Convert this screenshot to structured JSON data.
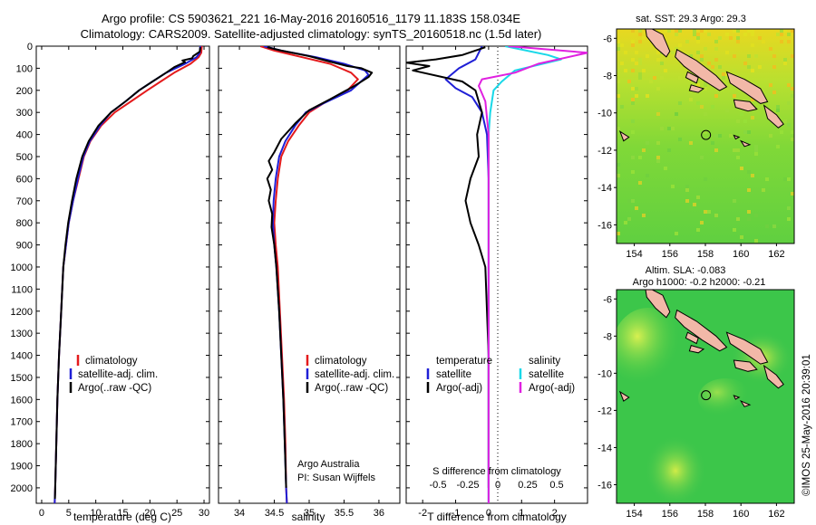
{
  "chart_data": [
    {
      "type": "line",
      "panel": "temperature",
      "xlabel": "temperature (deg C)",
      "ylabel": "",
      "xlim": [
        -1,
        31
      ],
      "ylim": [
        2070,
        0
      ],
      "xticks": [
        0,
        5,
        10,
        15,
        20,
        25,
        30
      ],
      "yticks": [
        0,
        100,
        200,
        300,
        400,
        500,
        600,
        700,
        800,
        900,
        1000,
        1100,
        1200,
        1300,
        1400,
        1500,
        1600,
        1700,
        1800,
        1900,
        2000
      ],
      "legend": [
        "climatology",
        "satellite-adj. clim.",
        "Argo(..raw -QC)"
      ],
      "series": [
        {
          "name": "climatology",
          "color": "#e41a1c",
          "points": [
            [
              29.6,
              0
            ],
            [
              29.5,
              30
            ],
            [
              29.0,
              50
            ],
            [
              27.5,
              80
            ],
            [
              24.5,
              120
            ],
            [
              22.0,
              160
            ],
            [
              19.5,
              200
            ],
            [
              16.5,
              250
            ],
            [
              13.5,
              300
            ],
            [
              11.0,
              360
            ],
            [
              9.0,
              430
            ],
            [
              7.8,
              500
            ],
            [
              6.8,
              600
            ],
            [
              5.8,
              700
            ],
            [
              5.0,
              800
            ],
            [
              4.5,
              900
            ],
            [
              4.0,
              1000
            ],
            [
              3.6,
              1200
            ],
            [
              3.2,
              1400
            ],
            [
              2.9,
              1600
            ],
            [
              2.7,
              1800
            ],
            [
              2.5,
              2000
            ],
            [
              2.4,
              2070
            ]
          ]
        },
        {
          "name": "satellite-adj. clim.",
          "color": "#1f1fd6",
          "points": [
            [
              29.3,
              0
            ],
            [
              29.2,
              30
            ],
            [
              28.6,
              50
            ],
            [
              26.5,
              80
            ],
            [
              23.0,
              120
            ],
            [
              20.5,
              160
            ],
            [
              18.0,
              200
            ],
            [
              15.5,
              250
            ],
            [
              12.8,
              300
            ],
            [
              10.8,
              360
            ],
            [
              8.9,
              430
            ],
            [
              7.7,
              500
            ],
            [
              6.7,
              600
            ],
            [
              5.8,
              700
            ],
            [
              5.0,
              800
            ],
            [
              4.5,
              900
            ],
            [
              4.0,
              1000
            ],
            [
              3.6,
              1200
            ],
            [
              3.2,
              1400
            ],
            [
              2.9,
              1600
            ],
            [
              2.7,
              1800
            ],
            [
              2.5,
              2000
            ],
            [
              2.4,
              2070
            ]
          ]
        },
        {
          "name": "Argo(..raw -QC)",
          "color": "#000000",
          "points": [
            [
              29.3,
              5
            ],
            [
              29.2,
              25
            ],
            [
              28.0,
              45
            ],
            [
              27.8,
              55
            ],
            [
              26.0,
              65
            ],
            [
              26.5,
              72
            ],
            [
              24.5,
              95
            ],
            [
              23.0,
              120
            ],
            [
              20.5,
              160
            ],
            [
              18.0,
              200
            ],
            [
              15.5,
              250
            ],
            [
              12.8,
              300
            ],
            [
              10.5,
              360
            ],
            [
              8.7,
              430
            ],
            [
              7.5,
              500
            ],
            [
              6.4,
              600
            ],
            [
              5.6,
              700
            ],
            [
              4.9,
              800
            ],
            [
              4.4,
              900
            ],
            [
              4.0,
              1000
            ],
            [
              3.6,
              1200
            ],
            [
              3.2,
              1400
            ],
            [
              2.9,
              1600
            ],
            [
              2.7,
              1800
            ],
            [
              2.5,
              2000
            ],
            [
              2.45,
              2050
            ]
          ]
        }
      ]
    },
    {
      "type": "line",
      "panel": "salinity",
      "xlabel": "salinity",
      "xlim": [
        33.7,
        36.3
      ],
      "ylim": [
        2070,
        0
      ],
      "xticks": [
        34,
        34.5,
        35,
        35.5,
        36
      ],
      "tick_labels": [
        "34",
        "34.5",
        "35",
        "35.5",
        "36"
      ],
      "legend": [
        "climatology",
        "satellite-adj. clim.",
        "Argo(..raw -QC)"
      ],
      "series": [
        {
          "name": "climatology",
          "color": "#e41a1c",
          "points": [
            [
              34.3,
              0
            ],
            [
              34.5,
              20
            ],
            [
              34.9,
              50
            ],
            [
              35.3,
              80
            ],
            [
              35.6,
              120
            ],
            [
              35.7,
              150
            ],
            [
              35.55,
              200
            ],
            [
              35.2,
              260
            ],
            [
              35.0,
              300
            ],
            [
              34.85,
              360
            ],
            [
              34.7,
              430
            ],
            [
              34.6,
              500
            ],
            [
              34.55,
              600
            ],
            [
              34.52,
              700
            ],
            [
              34.5,
              800
            ],
            [
              34.52,
              900
            ],
            [
              34.55,
              1000
            ],
            [
              34.58,
              1200
            ],
            [
              34.61,
              1400
            ],
            [
              34.64,
              1600
            ],
            [
              34.66,
              1800
            ],
            [
              34.67,
              2000
            ],
            [
              34.68,
              2070
            ]
          ]
        },
        {
          "name": "satellite-adj. clim.",
          "color": "#1f1fd6",
          "points": [
            [
              34.35,
              0
            ],
            [
              34.6,
              20
            ],
            [
              35.1,
              50
            ],
            [
              35.5,
              80
            ],
            [
              35.8,
              110
            ],
            [
              35.85,
              130
            ],
            [
              35.6,
              200
            ],
            [
              35.2,
              260
            ],
            [
              34.95,
              300
            ],
            [
              34.8,
              360
            ],
            [
              34.66,
              430
            ],
            [
              34.57,
              500
            ],
            [
              34.52,
              600
            ],
            [
              34.49,
              700
            ],
            [
              34.48,
              800
            ],
            [
              34.5,
              900
            ],
            [
              34.53,
              1000
            ],
            [
              34.57,
              1200
            ],
            [
              34.6,
              1400
            ],
            [
              34.63,
              1600
            ],
            [
              34.65,
              1800
            ],
            [
              34.67,
              2000
            ],
            [
              34.68,
              2070
            ]
          ]
        },
        {
          "name": "Argo(..raw -QC)",
          "color": "#000000",
          "points": [
            [
              34.4,
              5
            ],
            [
              34.6,
              20
            ],
            [
              35.0,
              45
            ],
            [
              35.3,
              70
            ],
            [
              35.55,
              90
            ],
            [
              35.75,
              100
            ],
            [
              35.9,
              120
            ],
            [
              35.85,
              140
            ],
            [
              35.65,
              180
            ],
            [
              35.3,
              240
            ],
            [
              35.0,
              290
            ],
            [
              34.8,
              350
            ],
            [
              34.6,
              420
            ],
            [
              34.5,
              480
            ],
            [
              34.42,
              520
            ],
            [
              34.47,
              560
            ],
            [
              34.4,
              600
            ],
            [
              34.45,
              650
            ],
            [
              34.42,
              700
            ],
            [
              34.47,
              760
            ],
            [
              34.46,
              820
            ],
            [
              34.5,
              900
            ],
            [
              34.53,
              1000
            ],
            [
              34.57,
              1200
            ],
            [
              34.6,
              1400
            ],
            [
              34.63,
              1600
            ],
            [
              34.65,
              1800
            ],
            [
              34.67,
              2000
            ]
          ]
        }
      ]
    },
    {
      "type": "line",
      "panel": "difference",
      "xlabel": "T difference from climatology",
      "x2label": "S difference from climatology",
      "xlim": [
        -2.5,
        3.0
      ],
      "ylim": [
        2070,
        0
      ],
      "xticks": [
        -2,
        -1,
        0,
        1,
        2
      ],
      "tick_labels": [
        "-2",
        "-1",
        "0",
        "1",
        "2"
      ],
      "x2ticks": [
        "-0.5",
        "-0.25",
        "0",
        "0.25",
        "0.5"
      ],
      "legend_left_title": "temperature",
      "legend_left": [
        "satellite",
        "Argo(-adj)"
      ],
      "legend_right_title": "salinity",
      "legend_right": [
        "satellite",
        "Argo(-adj)"
      ],
      "series": [
        {
          "name": "T satellite",
          "color": "#1f1fd6",
          "points": [
            [
              -0.2,
              0
            ],
            [
              -0.4,
              60
            ],
            [
              -0.9,
              100
            ],
            [
              -1.3,
              150
            ],
            [
              -1.0,
              190
            ],
            [
              -0.5,
              230
            ],
            [
              -0.2,
              300
            ],
            [
              -0.05,
              400
            ],
            [
              0,
              600
            ],
            [
              0,
              2070
            ]
          ]
        },
        {
          "name": "T Argo(-adj)",
          "color": "#000000",
          "points": [
            [
              -0.1,
              5
            ],
            [
              -0.8,
              40
            ],
            [
              -1.6,
              60
            ],
            [
              -2.5,
              75
            ],
            [
              -1.8,
              90
            ],
            [
              -2.3,
              110
            ],
            [
              -0.8,
              160
            ],
            [
              -0.4,
              200
            ],
            [
              -0.3,
              250
            ],
            [
              -0.2,
              300
            ],
            [
              -0.35,
              400
            ],
            [
              -0.3,
              500
            ],
            [
              -0.55,
              600
            ],
            [
              -0.7,
              700
            ],
            [
              -0.55,
              800
            ],
            [
              -0.3,
              900
            ],
            [
              -0.1,
              1000
            ],
            [
              -0.05,
              1200
            ],
            [
              0,
              1400
            ],
            [
              0,
              2000
            ]
          ]
        },
        {
          "name": "S satellite",
          "color": "#18d8e8",
          "points": [
            [
              0.5,
              0
            ],
            [
              1.8,
              40
            ],
            [
              2.2,
              60
            ],
            [
              0.8,
              110
            ],
            [
              0.4,
              160
            ],
            [
              0.15,
              200
            ],
            [
              0.05,
              300
            ],
            [
              0,
              400
            ],
            [
              0,
              2070
            ]
          ]
        },
        {
          "name": "S Argo(-adj)",
          "color": "#e020e0",
          "points": [
            [
              0.6,
              0
            ],
            [
              3.0,
              30
            ],
            [
              1.5,
              80
            ],
            [
              0.8,
              120
            ],
            [
              -0.2,
              150
            ],
            [
              -0.3,
              180
            ],
            [
              -0.1,
              250
            ],
            [
              0,
              400
            ],
            [
              0,
              2070
            ]
          ]
        }
      ]
    },
    {
      "type": "heatmap",
      "panel": "sst_map",
      "title": "sat. SST: 29.3 Argo: 29.3",
      "xlim": [
        153,
        163
      ],
      "ylim": [
        -17,
        -5.5
      ],
      "xticks": [
        "154",
        "156",
        "158",
        "160",
        "162"
      ],
      "yticks": [
        "-6",
        "-8",
        "-10",
        "-12",
        "-14",
        "-16"
      ],
      "argo_position": [
        158.034,
        -11.183
      ]
    },
    {
      "type": "heatmap",
      "panel": "sla_map",
      "title_lines": [
        "Altim. SLA: -0.083",
        "Argo h1000: -0.2 h2000: -0.21"
      ],
      "xlim": [
        153,
        163
      ],
      "ylim": [
        -17,
        -5.5
      ],
      "xticks": [
        "154",
        "156",
        "158",
        "160",
        "162"
      ],
      "yticks": [
        "-6",
        "-8",
        "-10",
        "-12",
        "-14",
        "-16"
      ],
      "argo_position": [
        158.034,
        -11.183
      ]
    }
  ],
  "title_line1": "Argo profile: CS 5903621_221 16-May-2016 20160516_1179 11.183S 158.034E",
  "title_line2": "Climatology: CARS2009. Satellite-adjusted climatology: synTS_20160518.nc (1.5d later)",
  "credit_line1": "Argo Australia",
  "credit_line2": "PI: Susan Wijffels",
  "timestamp": "©IMOS 25-May-2016 20:39:01",
  "colors": {
    "climatology": "#e41a1c",
    "satellite": "#1f1fd6",
    "argo": "#000000",
    "s_satellite": "#18d8e8",
    "s_argo": "#e020e0",
    "land": "#f2b8a8"
  }
}
